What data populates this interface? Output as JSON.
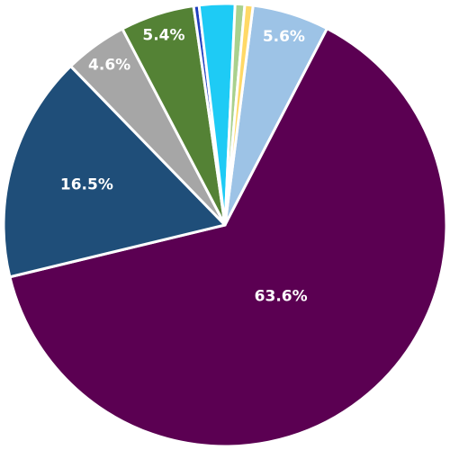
{
  "chart_data": {
    "type": "pie",
    "values": [
      5.6,
      63.6,
      16.5,
      4.6,
      5.4,
      0.4,
      2.6,
      0.7,
      0.6
    ],
    "value_labels": [
      "5.6%",
      "63.6%",
      "16.5%",
      "4.6%",
      "5.4%",
      null,
      null,
      null,
      null
    ],
    "colors": [
      "#9dc3e6",
      "#5b0052",
      "#1f4e79",
      "#a6a6a6",
      "#548235",
      "#1f3fbf",
      "#1ecbf5",
      "#a9d18e",
      "#ffd966"
    ]
  }
}
